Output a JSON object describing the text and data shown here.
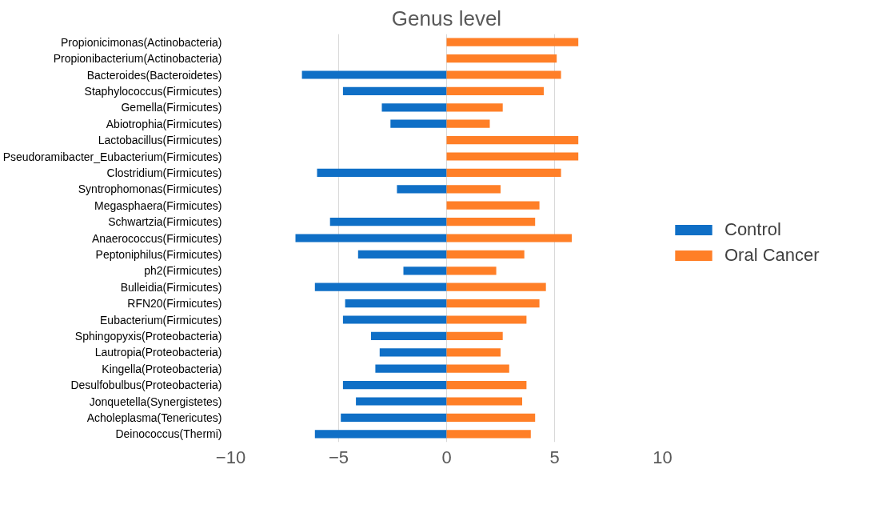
{
  "chart_data": {
    "type": "bar",
    "orientation": "horizontal",
    "title": "Genus level",
    "categories": [
      "Propionicimonas(Actinobacteria)",
      "Propionibacterium(Actinobacteria)",
      "Bacteroides(Bacteroidetes)",
      "Staphylococcus(Firmicutes)",
      "Gemella(Firmicutes)",
      "Abiotrophia(Firmicutes)",
      "Lactobacillus(Firmicutes)",
      "Pseudoramibacter_Eubacterium(Firmicutes)",
      "Clostridium(Firmicutes)",
      "Syntrophomonas(Firmicutes)",
      "Megasphaera(Firmicutes)",
      "Schwartzia(Firmicutes)",
      "Anaerococcus(Firmicutes)",
      "Peptoniphilus(Firmicutes)",
      "ph2(Firmicutes)",
      "Bulleidia(Firmicutes)",
      "RFN20(Firmicutes)",
      "Eubacterium(Firmicutes)",
      "Sphingopyxis(Proteobacteria)",
      "Lautropia(Proteobacteria)",
      "Kingella(Proteobacteria)",
      "Desulfobulbus(Proteobacteria)",
      "Jonquetella(Synergistetes)",
      "Acholeplasma(Tenericutes)",
      "Deinococcus(Thermi)"
    ],
    "series": [
      {
        "name": "Control",
        "color": "#0f6fc6",
        "values": [
          null,
          null,
          -6.7,
          -4.8,
          -3.0,
          -2.6,
          null,
          null,
          -6.0,
          -2.3,
          null,
          -5.4,
          -7.0,
          -4.1,
          -2.0,
          -6.1,
          -4.7,
          -4.8,
          -3.5,
          -3.1,
          -3.3,
          -4.8,
          -4.2,
          -4.9,
          -6.1
        ]
      },
      {
        "name": "Oral Cancer",
        "color": "#ff7f27",
        "values": [
          6.1,
          5.1,
          5.3,
          4.5,
          2.6,
          2.0,
          6.1,
          6.1,
          5.3,
          2.5,
          4.3,
          4.1,
          5.8,
          3.6,
          2.3,
          4.6,
          4.3,
          3.7,
          2.6,
          2.5,
          2.9,
          3.7,
          3.5,
          4.1,
          3.9
        ]
      }
    ],
    "stacked": true,
    "xlim": [
      -10,
      10
    ],
    "xticks": [
      -10,
      -5,
      0,
      5,
      10
    ],
    "grid": "x",
    "legend": "right"
  }
}
